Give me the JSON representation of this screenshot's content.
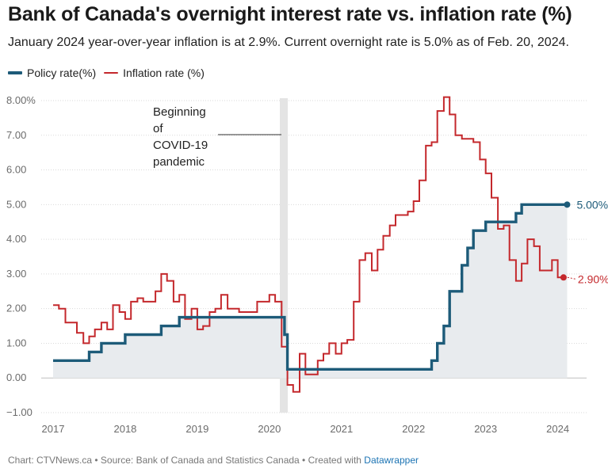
{
  "colors": {
    "policy": "#1d5b79",
    "inflation": "#c4282c",
    "area": "#e8ebee",
    "grid": "#d9d9d9",
    "covid_band": "#e4e4e4"
  },
  "footer": {
    "prefix": "Chart: CTVNews.ca • Source: Bank of Canada and Statistics Canada • Created with ",
    "link": "Datawrapper"
  },
  "chart_data": {
    "type": "line",
    "title": "Bank of Canada's overnight interest rate vs. inflation rate (%)",
    "subtitle": "January 2024 year-over-year inflation is at 2.9%. Current overnight rate is 5.0% as of Feb. 20, 2024.",
    "legend_position": "top-left",
    "grid": "horizontal",
    "xlim": [
      2017,
      2024.25
    ],
    "ylim": [
      -1,
      8
    ],
    "y_ticks": [
      "−1.00",
      "0.00",
      "1.00",
      "2.00",
      "3.00",
      "4.00",
      "5.00",
      "6.00",
      "7.00",
      "8.00%"
    ],
    "y_tick_values": [
      -1,
      0,
      1,
      2,
      3,
      4,
      5,
      6,
      7,
      8
    ],
    "x_ticks": [
      "2017",
      "2018",
      "2019",
      "2020",
      "2021",
      "2022",
      "2023",
      "2024"
    ],
    "x_tick_values": [
      2017,
      2018,
      2019,
      2020,
      2021,
      2022,
      2023,
      2024
    ],
    "annotation": {
      "lines": [
        "Beginning",
        "of",
        "COVID-19",
        "pandemic"
      ],
      "x": 2020.2
    },
    "series": [
      {
        "name": "Policy rate(%)",
        "step": true,
        "end_label": "5.00%",
        "x": [
          2017.0,
          2017.5,
          2017.67,
          2018.0,
          2018.5,
          2018.75,
          2018.83,
          2020.17,
          2020.21,
          2020.25,
          2022.17,
          2022.25,
          2022.33,
          2022.42,
          2022.5,
          2022.67,
          2022.75,
          2022.83,
          2022.92,
          2023.0,
          2023.08,
          2023.42,
          2023.5,
          2023.58,
          2024.13
        ],
        "values": [
          0.5,
          0.75,
          1.0,
          1.25,
          1.5,
          1.75,
          1.75,
          1.75,
          1.25,
          0.25,
          0.25,
          0.5,
          1.0,
          1.5,
          2.5,
          3.25,
          3.75,
          4.25,
          4.25,
          4.5,
          4.5,
          4.75,
          5.0,
          5.0,
          5.0
        ]
      },
      {
        "name": "Inflation rate (%)",
        "step": true,
        "end_label": "2.90%",
        "x": [
          2017.0,
          2017.08,
          2017.17,
          2017.25,
          2017.33,
          2017.42,
          2017.5,
          2017.58,
          2017.67,
          2017.75,
          2017.83,
          2017.92,
          2018.0,
          2018.08,
          2018.17,
          2018.25,
          2018.33,
          2018.42,
          2018.5,
          2018.58,
          2018.67,
          2018.75,
          2018.83,
          2018.92,
          2019.0,
          2019.08,
          2019.17,
          2019.25,
          2019.33,
          2019.42,
          2019.5,
          2019.58,
          2019.67,
          2019.75,
          2019.83,
          2019.92,
          2020.0,
          2020.08,
          2020.17,
          2020.25,
          2020.33,
          2020.42,
          2020.5,
          2020.58,
          2020.67,
          2020.75,
          2020.83,
          2020.92,
          2021.0,
          2021.08,
          2021.17,
          2021.25,
          2021.33,
          2021.42,
          2021.5,
          2021.58,
          2021.67,
          2021.75,
          2021.83,
          2021.92,
          2022.0,
          2022.08,
          2022.17,
          2022.25,
          2022.33,
          2022.42,
          2022.5,
          2022.58,
          2022.67,
          2022.75,
          2022.83,
          2022.92,
          2023.0,
          2023.08,
          2023.17,
          2023.25,
          2023.33,
          2023.42,
          2023.5,
          2023.58,
          2023.67,
          2023.75,
          2023.83,
          2023.92,
          2024.0,
          2024.08
        ],
        "values": [
          2.1,
          2.0,
          1.6,
          1.6,
          1.3,
          1.0,
          1.2,
          1.4,
          1.6,
          1.4,
          2.1,
          1.9,
          1.7,
          2.2,
          2.3,
          2.2,
          2.2,
          2.5,
          3.0,
          2.8,
          2.2,
          2.4,
          1.7,
          2.0,
          1.4,
          1.5,
          1.9,
          2.0,
          2.4,
          2.0,
          2.0,
          1.9,
          1.9,
          1.9,
          2.2,
          2.2,
          2.4,
          2.2,
          0.9,
          -0.2,
          -0.4,
          0.7,
          0.1,
          0.1,
          0.5,
          0.7,
          1.0,
          0.7,
          1.0,
          1.1,
          2.2,
          3.4,
          3.6,
          3.1,
          3.7,
          4.1,
          4.4,
          4.7,
          4.7,
          4.8,
          5.1,
          5.7,
          6.7,
          6.8,
          7.7,
          8.1,
          7.6,
          7.0,
          6.9,
          6.9,
          6.8,
          6.3,
          5.9,
          5.2,
          4.3,
          4.4,
          3.4,
          2.8,
          3.3,
          4.0,
          3.8,
          3.1,
          3.1,
          3.4,
          2.9,
          2.9
        ]
      }
    ]
  }
}
